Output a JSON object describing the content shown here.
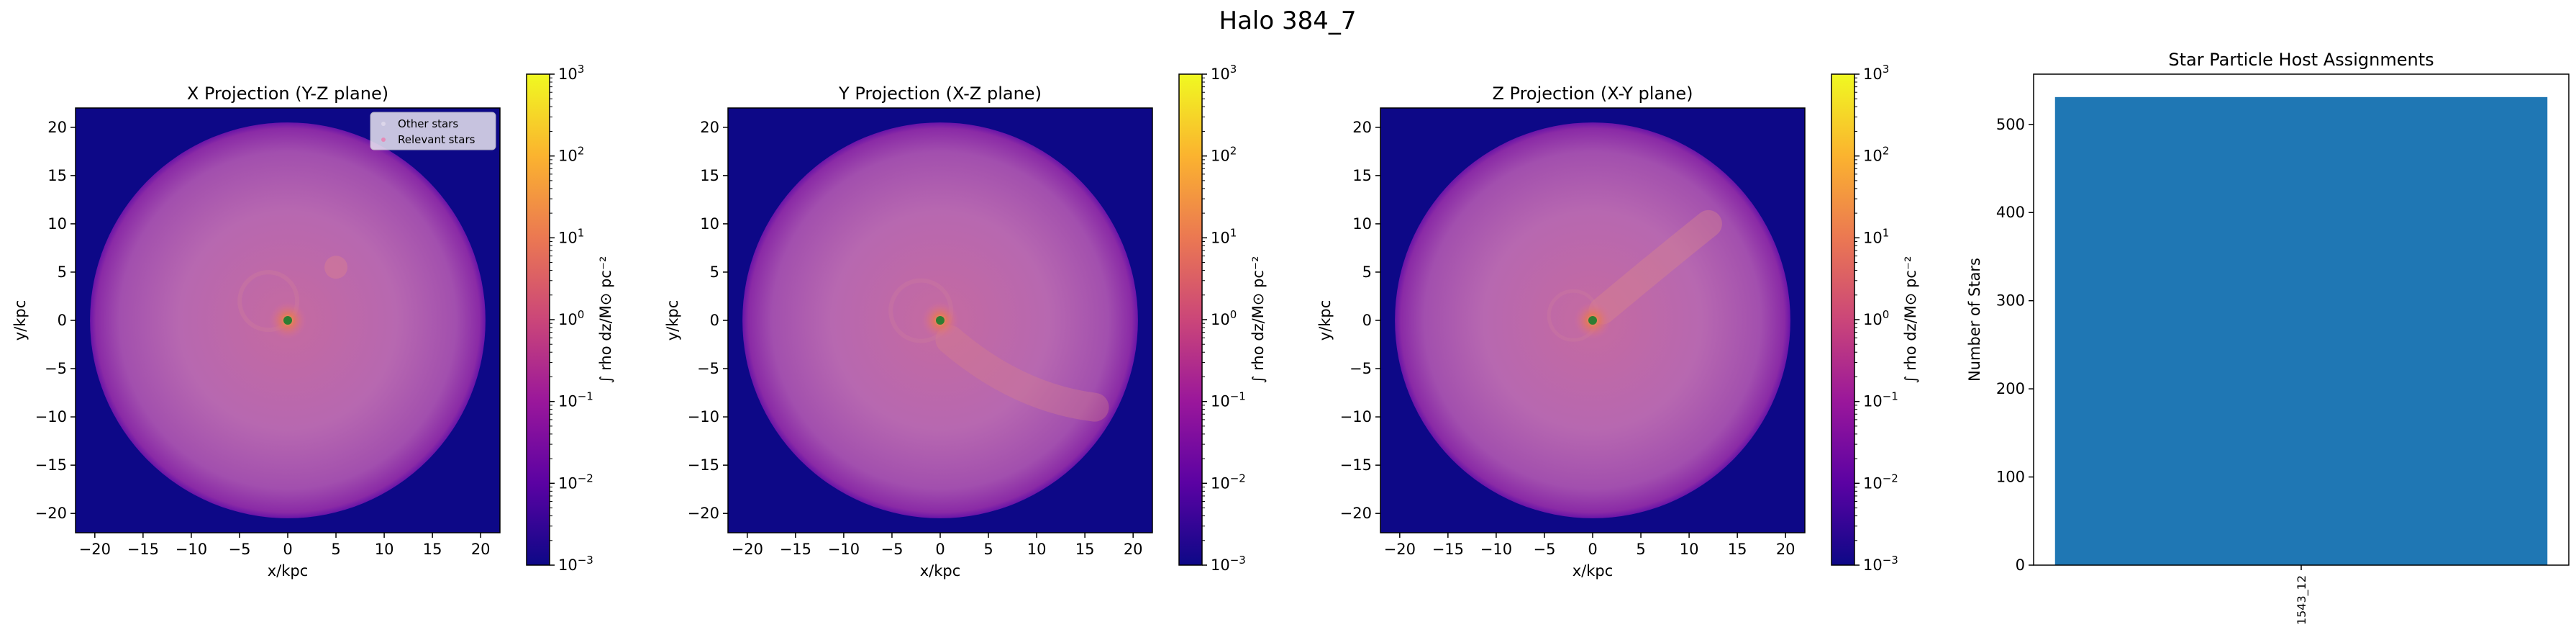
{
  "figure": {
    "suptitle": "Halo 384_7"
  },
  "colors": {
    "cmap": [
      "#0d0887",
      "#5b02a3",
      "#9a179b",
      "#cb4679",
      "#eb7852",
      "#fbb32f",
      "#f0f921"
    ],
    "disk_purple": "#b768b0",
    "disk_outer": "#8a2aa6",
    "background": "#0d0887",
    "center_dot": "#2e7d32",
    "bar": "#1f77b4"
  },
  "projections": [
    {
      "title": "X Projection (Y-Z plane)",
      "xlabel": "x/kpc",
      "ylabel": "y/kpc",
      "cbar_label": "∫ rho dz/M⊙ pc⁻²",
      "legend": [
        "Other stars",
        "Relevant stars"
      ]
    },
    {
      "title": "Y Projection (X-Z plane)",
      "xlabel": "x/kpc",
      "ylabel": "y/kpc",
      "cbar_label": "∫ rho dz/M⊙ pc⁻²",
      "legend": []
    },
    {
      "title": "Z Projection (X-Y plane)",
      "xlabel": "x/kpc",
      "ylabel": "y/kpc",
      "cbar_label": "∫ rho dz/M⊙ pc⁻²",
      "legend": []
    }
  ],
  "chart_data": [
    {
      "type": "heatmap",
      "title": "X Projection (Y-Z plane)",
      "xlabel": "x/kpc",
      "ylabel": "y/kpc",
      "xlim": [
        -22,
        22
      ],
      "ylim": [
        -22,
        22
      ],
      "xticks": [
        -20,
        -15,
        -10,
        -5,
        0,
        5,
        10,
        15,
        20
      ],
      "yticks": [
        -20,
        -15,
        -10,
        -5,
        0,
        5,
        10,
        15,
        20
      ],
      "colorbar": {
        "scale": "log",
        "range": [
          0.001,
          1000
        ],
        "ticks": [
          -3,
          -2,
          -1,
          0,
          1,
          2,
          3
        ]
      }
    },
    {
      "type": "heatmap",
      "title": "Y Projection (X-Z plane)",
      "xlabel": "x/kpc",
      "ylabel": "y/kpc",
      "xlim": [
        -22,
        22
      ],
      "ylim": [
        -22,
        22
      ],
      "xticks": [
        -20,
        -15,
        -10,
        -5,
        0,
        5,
        10,
        15,
        20
      ],
      "yticks": [
        -20,
        -15,
        -10,
        -5,
        0,
        5,
        10,
        15,
        20
      ],
      "colorbar": {
        "scale": "log",
        "range": [
          0.001,
          1000
        ],
        "ticks": [
          -3,
          -2,
          -1,
          0,
          1,
          2,
          3
        ]
      }
    },
    {
      "type": "heatmap",
      "title": "Z Projection (X-Y plane)",
      "xlabel": "x/kpc",
      "ylabel": "y/kpc",
      "xlim": [
        -22,
        22
      ],
      "ylim": [
        -22,
        22
      ],
      "xticks": [
        -20,
        -15,
        -10,
        -5,
        0,
        5,
        10,
        15,
        20
      ],
      "yticks": [
        -20,
        -15,
        -10,
        -5,
        0,
        5,
        10,
        15,
        20
      ],
      "colorbar": {
        "scale": "log",
        "range": [
          0.001,
          1000
        ],
        "ticks": [
          -3,
          -2,
          -1,
          0,
          1,
          2,
          3
        ]
      }
    },
    {
      "type": "bar",
      "title": "Star Particle Host Assignments",
      "xlabel": "",
      "ylabel": "Number of Stars",
      "categories": [
        "1543_12"
      ],
      "values": [
        531
      ],
      "ylim": [
        0,
        557
      ],
      "yticks": [
        0,
        100,
        200,
        300,
        400,
        500
      ]
    }
  ]
}
